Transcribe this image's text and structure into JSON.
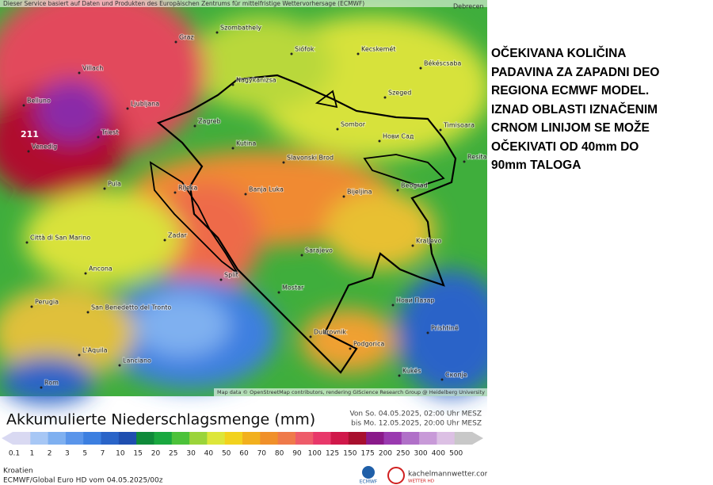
{
  "map": {
    "header": "Dieser Service basiert auf Daten und Produkten des Europäischen Zentrums für mittelfristige Wettervorhersage (ECMWF)",
    "header_right": "Debrecen",
    "max_value": "211",
    "attribution": "Map data © OpenStreetMap contributors, rendering GIScience Research Group @ Heidelberg University",
    "cities": [
      "Graz",
      "Szombathely",
      "Siófok",
      "Kecskemét",
      "Békéscsaba",
      "Villach",
      "Nagykanizsa",
      "Belluno",
      "Ljubljana",
      "Szeged",
      "Zagreb",
      "Triest",
      "Sombor",
      "Timisoara",
      "Venedig",
      "Kutina",
      "Нови Сад",
      "Slavonski Brod",
      "Resita",
      "Pula",
      "Rijeka",
      "Banja Luka",
      "Bijeljina",
      "Beograd",
      "Città di San Marino",
      "Zadar",
      "Sarajevo",
      "Kraljevo",
      "Ancona",
      "Split",
      "Mostar",
      "Нови Пазар",
      "Perugia",
      "San Benedetto del Tronto",
      "Dubrovnik",
      "Podgorica",
      "Prishtinë",
      "L'Aquila",
      "Lanciano",
      "Kukës",
      "Скопје",
      "Rom"
    ]
  },
  "caption": {
    "lines": [
      "OČEKIVANA KOLIČINA",
      "PADAVINA ZA ZAPADNI DEO",
      "REGIONA ECMWF MODEL.",
      "IZNAD OBLASTI IZNAČENIM",
      "CRNOM LINIJOM SE MOŽE",
      "OČEKIVATI OD 40mm DO",
      "90mm TALOGA"
    ]
  },
  "legend": {
    "title": "Akkumulierte Niederschlagsmenge (mm)",
    "period_from": "Von So. 04.05.2025, 02:00 Uhr MESZ",
    "period_to": "bis Mo. 12.05.2025, 20:00 Uhr MESZ",
    "levels": [
      "0.1",
      "1",
      "2",
      "3",
      "5",
      "7",
      "10",
      "15",
      "20",
      "25",
      "30",
      "40",
      "50",
      "60",
      "70",
      "80",
      "90",
      "100",
      "125",
      "150",
      "175",
      "200",
      "250",
      "300",
      "400",
      "500"
    ],
    "colors": [
      "#d9d9f2",
      "#a7c7f5",
      "#7fb0f0",
      "#5a95ea",
      "#3c7fe0",
      "#2a64c8",
      "#1f4fb0",
      "#0f8a3a",
      "#19a83f",
      "#4cc23a",
      "#9bd43a",
      "#dde63a",
      "#f2d21e",
      "#f2b01e",
      "#f0902a",
      "#ef7a4a",
      "#ee5c6a",
      "#e8386a",
      "#d0184a",
      "#a8102e",
      "#8a1a8a",
      "#9a3ab0",
      "#b070c8",
      "#c89ad8",
      "#dcc0e4",
      "#c8c8c8"
    ]
  },
  "footer": {
    "region": "Kroatien",
    "model": "ECMWF/Global Euro HD vom 04.05.2025/00z",
    "logo": "ECMWF",
    "brand": "kachelmannwetter.com",
    "brand_sub": "WETTER HD"
  }
}
